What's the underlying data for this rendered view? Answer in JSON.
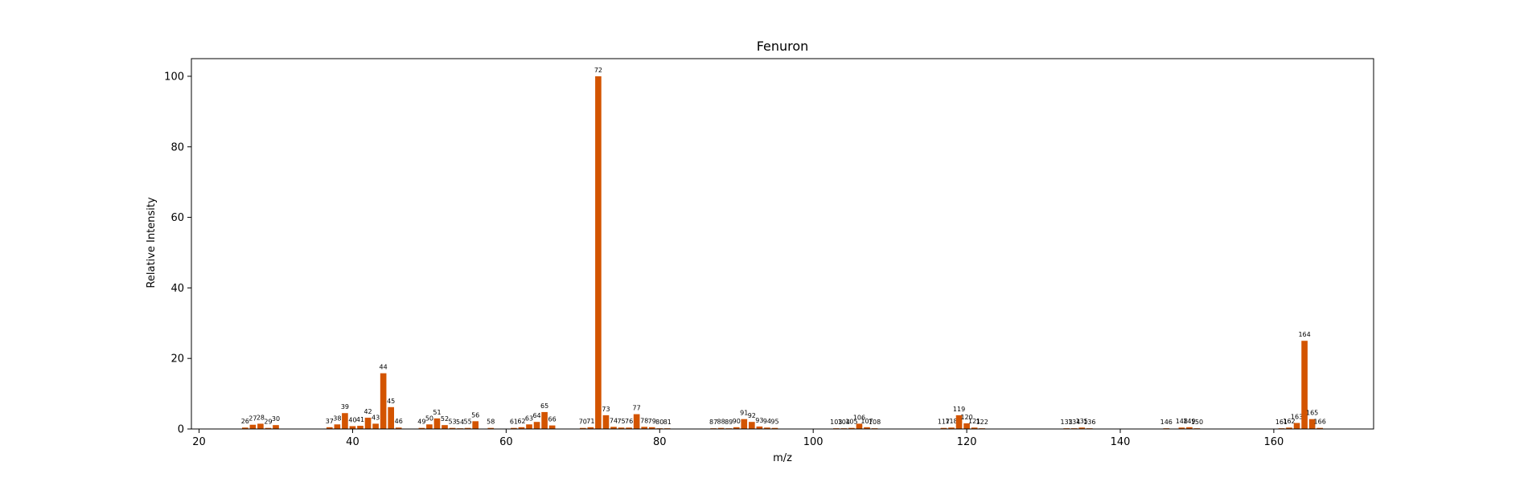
{
  "chart_data": {
    "type": "bar",
    "title": "Fenuron",
    "xlabel": "m/z",
    "ylabel": "Relative Intensity",
    "xlim": [
      19,
      173
    ],
    "ylim": [
      0,
      105
    ],
    "xticks": [
      20,
      40,
      60,
      80,
      100,
      120,
      140,
      160
    ],
    "yticks": [
      0,
      20,
      40,
      60,
      80,
      100
    ],
    "grid": false,
    "bar_color": "#d35400",
    "peaks": [
      {
        "mz": 26,
        "intensity": 0.4
      },
      {
        "mz": 27,
        "intensity": 1.2
      },
      {
        "mz": 28,
        "intensity": 1.5
      },
      {
        "mz": 29,
        "intensity": 0.3
      },
      {
        "mz": 30,
        "intensity": 1.1
      },
      {
        "mz": 37,
        "intensity": 0.5
      },
      {
        "mz": 38,
        "intensity": 1.3
      },
      {
        "mz": 39,
        "intensity": 4.5
      },
      {
        "mz": 40,
        "intensity": 0.8
      },
      {
        "mz": 41,
        "intensity": 0.9
      },
      {
        "mz": 42,
        "intensity": 3.2
      },
      {
        "mz": 43,
        "intensity": 1.5
      },
      {
        "mz": 44,
        "intensity": 15.8
      },
      {
        "mz": 45,
        "intensity": 6.2
      },
      {
        "mz": 46,
        "intensity": 0.4
      },
      {
        "mz": 49,
        "intensity": 0.3
      },
      {
        "mz": 50,
        "intensity": 1.3
      },
      {
        "mz": 51,
        "intensity": 3.0
      },
      {
        "mz": 52,
        "intensity": 1.1
      },
      {
        "mz": 53,
        "intensity": 0.3
      },
      {
        "mz": 54,
        "intensity": 0.2
      },
      {
        "mz": 55,
        "intensity": 0.3
      },
      {
        "mz": 56,
        "intensity": 2.2
      },
      {
        "mz": 58,
        "intensity": 0.3
      },
      {
        "mz": 61,
        "intensity": 0.3
      },
      {
        "mz": 62,
        "intensity": 0.5
      },
      {
        "mz": 63,
        "intensity": 1.3
      },
      {
        "mz": 64,
        "intensity": 2.0
      },
      {
        "mz": 65,
        "intensity": 4.8
      },
      {
        "mz": 66,
        "intensity": 1.0
      },
      {
        "mz": 70,
        "intensity": 0.3
      },
      {
        "mz": 71,
        "intensity": 0.5
      },
      {
        "mz": 72,
        "intensity": 100
      },
      {
        "mz": 73,
        "intensity": 3.9
      },
      {
        "mz": 74,
        "intensity": 0.6
      },
      {
        "mz": 75,
        "intensity": 0.4
      },
      {
        "mz": 76,
        "intensity": 0.4
      },
      {
        "mz": 77,
        "intensity": 4.2
      },
      {
        "mz": 78,
        "intensity": 0.6
      },
      {
        "mz": 79,
        "intensity": 0.5
      },
      {
        "mz": 80,
        "intensity": 0.2
      },
      {
        "mz": 81,
        "intensity": 0.2
      },
      {
        "mz": 87,
        "intensity": 0.2
      },
      {
        "mz": 88,
        "intensity": 0.3
      },
      {
        "mz": 89,
        "intensity": 0.2
      },
      {
        "mz": 90,
        "intensity": 0.5
      },
      {
        "mz": 91,
        "intensity": 2.8
      },
      {
        "mz": 92,
        "intensity": 2.0
      },
      {
        "mz": 93,
        "intensity": 0.7
      },
      {
        "mz": 94,
        "intensity": 0.4
      },
      {
        "mz": 95,
        "intensity": 0.3
      },
      {
        "mz": 103,
        "intensity": 0.2
      },
      {
        "mz": 104,
        "intensity": 0.2
      },
      {
        "mz": 105,
        "intensity": 0.3
      },
      {
        "mz": 106,
        "intensity": 1.5
      },
      {
        "mz": 107,
        "intensity": 0.5
      },
      {
        "mz": 108,
        "intensity": 0.2
      },
      {
        "mz": 117,
        "intensity": 0.3
      },
      {
        "mz": 118,
        "intensity": 0.4
      },
      {
        "mz": 119,
        "intensity": 3.9
      },
      {
        "mz": 120,
        "intensity": 1.6
      },
      {
        "mz": 121,
        "intensity": 0.4
      },
      {
        "mz": 122,
        "intensity": 0.2
      },
      {
        "mz": 133,
        "intensity": 0.2
      },
      {
        "mz": 134,
        "intensity": 0.2
      },
      {
        "mz": 135,
        "intensity": 0.4
      },
      {
        "mz": 136,
        "intensity": 0.2
      },
      {
        "mz": 146,
        "intensity": 0.2
      },
      {
        "mz": 148,
        "intensity": 0.4
      },
      {
        "mz": 149,
        "intensity": 0.5
      },
      {
        "mz": 150,
        "intensity": 0.2
      },
      {
        "mz": 161,
        "intensity": 0.2
      },
      {
        "mz": 162,
        "intensity": 0.4
      },
      {
        "mz": 163,
        "intensity": 1.7
      },
      {
        "mz": 164,
        "intensity": 25
      },
      {
        "mz": 165,
        "intensity": 2.8
      },
      {
        "mz": 166,
        "intensity": 0.3
      }
    ]
  }
}
